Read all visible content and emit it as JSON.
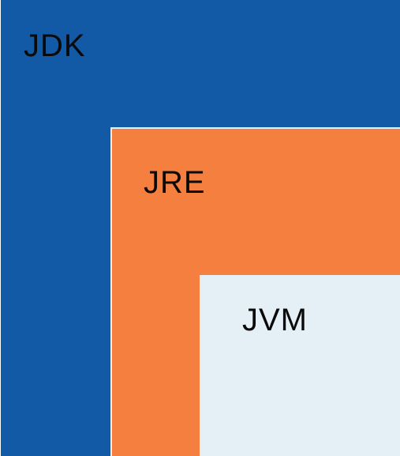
{
  "diagram": {
    "layers": [
      {
        "label": "JDK",
        "color": "#1259a6"
      },
      {
        "label": "JRE",
        "color": "#f47f3f"
      },
      {
        "label": "JVM",
        "color": "#e5eff6"
      }
    ]
  }
}
